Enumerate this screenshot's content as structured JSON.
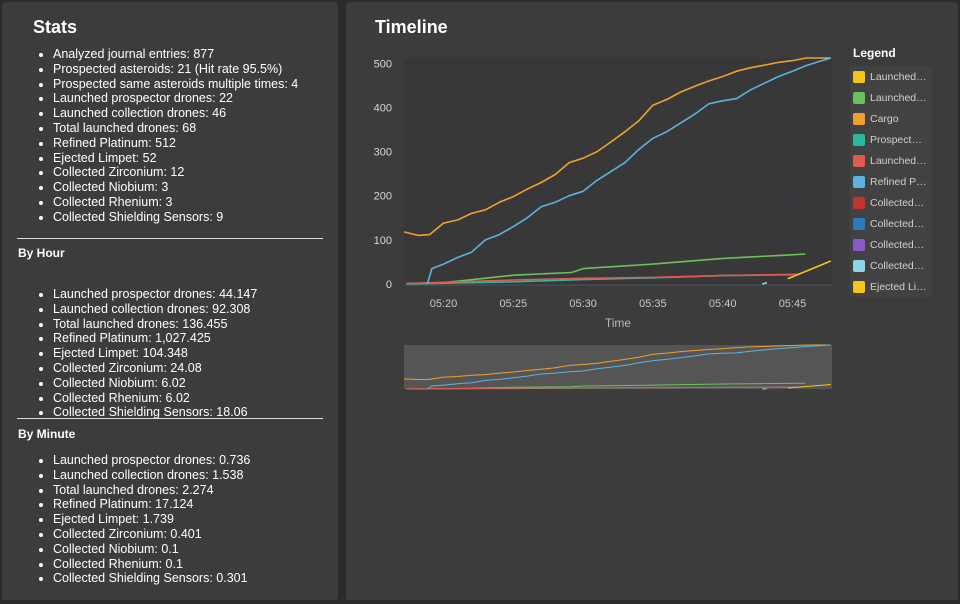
{
  "stats": {
    "title": "Stats",
    "summary": [
      "Analyzed journal entries: 877",
      "Prospected asteroids: 21 (Hit rate 95.5%)",
      "Prospected same asteroids multiple times: 4",
      "Launched prospector drones: 22",
      "Launched collection drones: 46",
      "Total launched drones: 68",
      "Refined Platinum: 512",
      "Ejected Limpet: 52",
      "Collected Zirconium: 12",
      "Collected Niobium: 3",
      "Collected Rhenium: 3",
      "Collected Shielding Sensors: 9"
    ],
    "by_hour_heading": "By Hour",
    "by_hour": [
      "Launched prospector drones: 44.147",
      "Launched collection drones: 92.308",
      "Total launched drones: 136.455",
      "Refined Platinum: 1,027.425",
      "Ejected Limpet: 104.348",
      "Collected Zirconium: 24.08",
      "Collected Niobium: 6.02",
      "Collected Rhenium: 6.02",
      "Collected Shielding Sensors: 18.06"
    ],
    "by_minute_heading": "By Minute",
    "by_minute": [
      "Launched prospector drones: 0.736",
      "Launched collection drones: 1.538",
      "Total launched drones: 2.274",
      "Refined Platinum: 17.124",
      "Ejected Limpet: 1.739",
      "Collected Zirconium: 0.401",
      "Collected Niobium: 0.1",
      "Collected Rhenium: 0.1",
      "Collected Shielding Sensors: 0.301"
    ]
  },
  "timeline": {
    "title": "Timeline",
    "legend_title": "Legend"
  },
  "chart_data": {
    "type": "line",
    "xlabel": "Time",
    "ylabel": "",
    "x_ticks": [
      "05:20",
      "05:25",
      "05:30",
      "05:35",
      "05:40",
      "05:45"
    ],
    "y_ticks": [
      0,
      100,
      200,
      300,
      400,
      500
    ],
    "ylim": [
      0,
      512
    ],
    "xlim": [
      "05:17:10",
      "05:47:50"
    ],
    "grid": true,
    "legend_position": "right",
    "series": [
      {
        "name": "Launched …",
        "color": "#f5c518",
        "points": []
      },
      {
        "name": "Launched …",
        "color": "#6cc05a",
        "points": [
          [
            "05:17:20",
            1
          ],
          [
            "05:20:00",
            3
          ],
          [
            "05:25:00",
            20
          ],
          [
            "05:29:10",
            26
          ],
          [
            "05:30:00",
            35
          ],
          [
            "05:35:00",
            45
          ],
          [
            "05:40:00",
            58
          ],
          [
            "05:44:20",
            65
          ],
          [
            "05:45:55",
            68
          ]
        ]
      },
      {
        "name": "Cargo",
        "color": "#f0a030",
        "points": [
          [
            "05:17:10",
            118
          ],
          [
            "05:18:10",
            110
          ],
          [
            "05:19:00",
            112
          ],
          [
            "05:20:00",
            138
          ],
          [
            "05:21:00",
            145
          ],
          [
            "05:22:00",
            160
          ],
          [
            "05:23:00",
            168
          ],
          [
            "05:24:00",
            185
          ],
          [
            "05:25:00",
            198
          ],
          [
            "05:26:00",
            215
          ],
          [
            "05:27:00",
            230
          ],
          [
            "05:28:00",
            248
          ],
          [
            "05:29:00",
            275
          ],
          [
            "05:30:00",
            285
          ],
          [
            "05:31:00",
            300
          ],
          [
            "05:32:00",
            322
          ],
          [
            "05:33:00",
            345
          ],
          [
            "05:34:00",
            370
          ],
          [
            "05:35:00",
            405
          ],
          [
            "05:36:00",
            418
          ],
          [
            "05:37:00",
            435
          ],
          [
            "05:38:00",
            448
          ],
          [
            "05:39:00",
            460
          ],
          [
            "05:40:00",
            470
          ],
          [
            "05:41:00",
            482
          ],
          [
            "05:42:00",
            490
          ],
          [
            "05:43:00",
            496
          ],
          [
            "05:44:00",
            502
          ],
          [
            "05:45:00",
            506
          ],
          [
            "05:46:00",
            512
          ],
          [
            "05:47:45",
            512
          ]
        ]
      },
      {
        "name": "Prospecte…",
        "color": "#2ab8a0",
        "points": [
          [
            "05:17:20",
            0
          ],
          [
            "05:25:00",
            5
          ],
          [
            "05:30:00",
            10
          ],
          [
            "05:35:00",
            14
          ],
          [
            "05:40:00",
            19
          ],
          [
            "05:45:00",
            21
          ]
        ]
      },
      {
        "name": "Launched …",
        "color": "#e05a50",
        "points": [
          [
            "05:17:20",
            1
          ],
          [
            "05:25:00",
            9
          ],
          [
            "05:30:00",
            13
          ],
          [
            "05:35:00",
            15
          ],
          [
            "05:40:00",
            19
          ],
          [
            "05:45:30",
            22
          ]
        ]
      },
      {
        "name": "Refined Pl…",
        "color": "#5ab4e0",
        "points": [
          [
            "05:18:50",
            0
          ],
          [
            "05:19:10",
            35
          ],
          [
            "05:20:00",
            45
          ],
          [
            "05:21:00",
            60
          ],
          [
            "05:22:00",
            72
          ],
          [
            "05:23:00",
            100
          ],
          [
            "05:24:00",
            112
          ],
          [
            "05:25:00",
            130
          ],
          [
            "05:26:00",
            150
          ],
          [
            "05:27:00",
            175
          ],
          [
            "05:28:00",
            185
          ],
          [
            "05:29:00",
            200
          ],
          [
            "05:30:00",
            210
          ],
          [
            "05:31:00",
            235
          ],
          [
            "05:32:00",
            255
          ],
          [
            "05:33:00",
            275
          ],
          [
            "05:34:00",
            305
          ],
          [
            "05:35:00",
            330
          ],
          [
            "05:36:00",
            345
          ],
          [
            "05:37:00",
            365
          ],
          [
            "05:38:00",
            385
          ],
          [
            "05:39:00",
            408
          ],
          [
            "05:40:00",
            415
          ],
          [
            "05:41:00",
            420
          ],
          [
            "05:42:00",
            440
          ],
          [
            "05:43:00",
            455
          ],
          [
            "05:44:00",
            470
          ],
          [
            "05:45:00",
            482
          ],
          [
            "05:46:00",
            495
          ],
          [
            "05:47:00",
            505
          ],
          [
            "05:47:45",
            512
          ]
        ]
      },
      {
        "name": "Collected …",
        "color": "#c83030",
        "points": []
      },
      {
        "name": "Collected …",
        "color": "#2a7ac0",
        "points": []
      },
      {
        "name": "Collected …",
        "color": "#8a5ac8",
        "points": []
      },
      {
        "name": "Collected …",
        "color": "#8ad8e8",
        "points": [
          [
            "05:42:50",
            0
          ],
          [
            "05:43:10",
            3
          ]
        ]
      },
      {
        "name": "Ejected Li…",
        "color": "#f5c518",
        "points": [
          [
            "05:44:40",
            12
          ],
          [
            "05:47:45",
            52
          ]
        ]
      }
    ]
  }
}
